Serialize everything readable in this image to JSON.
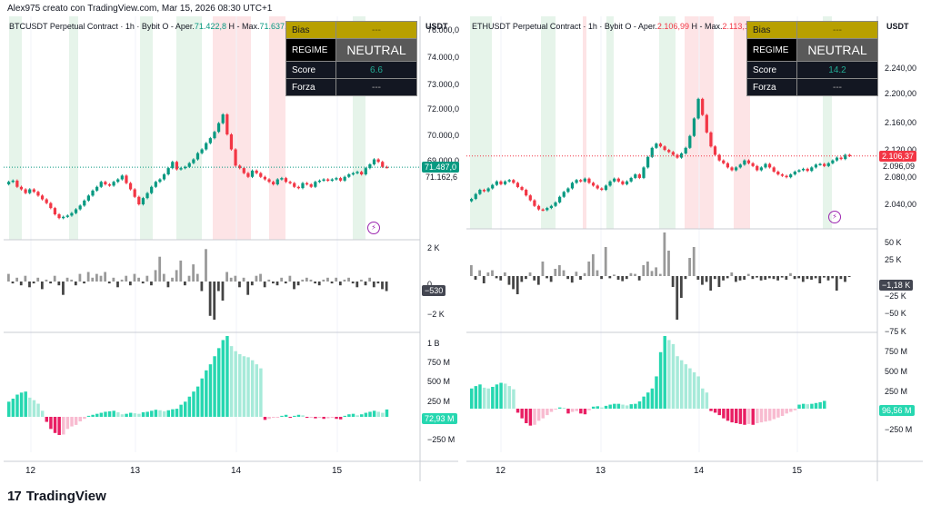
{
  "header": {
    "text": "Alex975 creato con TradingView.com, Mar 15, 2026 08:30 UTC+1"
  },
  "footer": {
    "brand": "TradingView",
    "mark": "17"
  },
  "panels": [
    {
      "id": "btc",
      "title_prefix": "BTCUSDT Perpetual Contract · 1h · Bybit  O - Aper.",
      "open": "71.422,8",
      "high_label": "H - Max.",
      "high": "71.637,3",
      "low_label": "L",
      "unit": "USDT",
      "price_ticks": [
        "76.000,0",
        "74.000,0",
        "73.000,0",
        "72.000,0",
        "70.000,0",
        "69.000,0"
      ],
      "last_price": "71.487,0",
      "secondary_price": "71.162,6",
      "mid_ticks": [
        "2 K",
        "0",
        "−2 K"
      ],
      "mid_last": "−530",
      "low_ticks": [
        "1 B",
        "750 M",
        "500 M",
        "250 M",
        "−250 M"
      ],
      "low_last": "72,93 M",
      "x_labels": [
        "12",
        "13",
        "14",
        "15"
      ],
      "info": {
        "bias_label": "Bias",
        "bias": "---",
        "regime_label": "REGIME",
        "regime": "NEUTRAL",
        "score_label": "Score",
        "score": "6.6",
        "forza_label": "Forza",
        "forza": "---"
      }
    },
    {
      "id": "eth",
      "title_prefix": "ETHUSDT Perpetual Contract · 1h · Bybit  O - Aper.",
      "open": "2.106,99",
      "high_label": "H - Max.",
      "high": "2.113,18",
      "low_label": "L",
      "unit": "USDT",
      "price_ticks": [
        "2.240,00",
        "2.200,00",
        "2.160,00",
        "2.120,00",
        "2.080,00",
        "2.040,00"
      ],
      "last_price": "2.106,37",
      "secondary_price": "2.096,09",
      "mid_ticks": [
        "50 K",
        "25 K",
        "−25 K",
        "−50 K",
        "−75 K"
      ],
      "mid_last": "−1,18 K",
      "low_ticks": [
        "750 M",
        "500 M",
        "250 M",
        "0",
        "−250 M"
      ],
      "low_last": "96,56 M",
      "x_labels": [
        "12",
        "13",
        "14",
        "15"
      ],
      "info": {
        "bias_label": "Bias",
        "bias": "---",
        "regime_label": "REGIME",
        "regime": "NEUTRAL",
        "score_label": "Score",
        "score": "14.2",
        "forza_label": "Forza",
        "forza": "---"
      }
    }
  ],
  "colors": {
    "up": "#089981",
    "down": "#f23645",
    "vol_up": "#999999",
    "vol_down": "#444444",
    "osc_pos": "#26d7b0",
    "osc_pos_light": "#a6ead9",
    "osc_neg": "#e91e63",
    "osc_neg_light": "#f8bbd0",
    "band_green": "#e6f4ea",
    "band_red": "#fde4e6"
  },
  "chart_data": [
    {
      "type": "candlestick",
      "title": "BTCUSDT Perpetual Contract · 1h · Bybit",
      "ylabel": "USDT",
      "ylim": [
        68800,
        76800
      ],
      "x_labels": [
        "12",
        "13",
        "14",
        "15"
      ],
      "close": [
        70900,
        70950,
        70700,
        70600,
        70450,
        70600,
        70500,
        70350,
        70200,
        70050,
        69850,
        69600,
        69450,
        69500,
        69550,
        69650,
        69800,
        69950,
        70150,
        70350,
        70550,
        70700,
        70900,
        70800,
        70750,
        70900,
        71000,
        71150,
        70850,
        70600,
        70300,
        70000,
        70250,
        70450,
        70700,
        70900,
        71000,
        71200,
        71450,
        71700,
        71400,
        71450,
        71500,
        71650,
        71800,
        72050,
        72200,
        72450,
        72650,
        72900,
        73250,
        73600,
        72800,
        72200,
        71550,
        71450,
        71250,
        71100,
        71350,
        71250,
        71100,
        71000,
        70900,
        70800,
        71000,
        71050,
        70900,
        70850,
        70700,
        70650,
        70850,
        70800,
        70700,
        70900,
        70950,
        71000,
        70950,
        71000,
        71050,
        70950,
        71100,
        71200,
        71250,
        71300,
        71200,
        71450,
        71600,
        71800,
        71700,
        71500,
        71487
      ],
      "volume_delta_K": [
        0.4,
        -0.1,
        0.2,
        -0.2,
        0.3,
        -0.3,
        -0.1,
        0.2,
        -0.4,
        0.1,
        -0.1,
        0.3,
        -0.2,
        -0.7,
        0.2,
        0.1,
        -0.2,
        0.4,
        -0.1,
        0.5,
        0.2,
        0.4,
        0.3,
        0.5,
        -0.1,
        0.2,
        -0.3,
        0.1,
        0.3,
        -0.2,
        0.4,
        0.2,
        -0.1,
        0.3,
        -0.2,
        0.6,
        1.3,
        0.4,
        -0.3,
        0.2,
        0.6,
        1.1,
        -0.2,
        0.3,
        0.9,
        0.4,
        -0.5,
        1.7,
        -1.8,
        -2.0,
        -0.5,
        -1.0,
        0.5,
        0.2,
        0.3,
        -0.3,
        0.2,
        -0.7,
        -0.2,
        0.3,
        0.4,
        -0.3,
        0.1,
        -0.1,
        -0.2,
        0.2,
        -0.1,
        0.3,
        -0.4,
        -0.2,
        0.1,
        0.2,
        0.1,
        -0.1,
        -0.2,
        0.1,
        0.2,
        -0.1,
        0.2,
        -0.2,
        0.1,
        0.2,
        -0.1,
        -0.3,
        0.1,
        -0.2,
        0.2,
        -0.3,
        -0.1,
        -0.4,
        -0.5
      ],
      "oscillator_M": [
        150,
        180,
        220,
        240,
        250,
        190,
        165,
        130,
        60,
        -50,
        -120,
        -160,
        -180,
        -175,
        -120,
        -95,
        -80,
        -45,
        -20,
        10,
        20,
        30,
        40,
        50,
        55,
        60,
        45,
        25,
        30,
        40,
        35,
        30,
        45,
        50,
        60,
        70,
        65,
        55,
        65,
        75,
        80,
        120,
        150,
        200,
        250,
        300,
        380,
        460,
        520,
        600,
        680,
        760,
        800,
        700,
        650,
        620,
        600,
        590,
        560,
        520,
        480,
        -30,
        -20,
        -10,
        -5,
        10,
        20,
        -10,
        10,
        20,
        15,
        -10,
        -5,
        -15,
        -10,
        -20,
        -15,
        -10,
        -20,
        -25,
        10,
        25,
        30,
        15,
        25,
        40,
        50,
        60,
        50,
        40,
        72.9
      ]
    },
    {
      "type": "candlestick",
      "title": "ETHUSDT Perpetual Contract · 1h · Bybit",
      "ylabel": "USDT",
      "ylim": [
        2010,
        2280
      ],
      "x_labels": [
        "12",
        "13",
        "14",
        "15"
      ],
      "close": [
        2045,
        2052,
        2058,
        2056,
        2060,
        2065,
        2070,
        2066,
        2070,
        2072,
        2068,
        2062,
        2058,
        2050,
        2043,
        2035,
        2030,
        2029,
        2032,
        2035,
        2040,
        2048,
        2055,
        2060,
        2068,
        2072,
        2070,
        2074,
        2068,
        2064,
        2060,
        2058,
        2064,
        2070,
        2074,
        2070,
        2066,
        2070,
        2075,
        2080,
        2075,
        2090,
        2105,
        2118,
        2124,
        2120,
        2115,
        2112,
        2108,
        2104,
        2110,
        2118,
        2135,
        2160,
        2188,
        2165,
        2140,
        2120,
        2108,
        2100,
        2096,
        2090,
        2086,
        2090,
        2094,
        2100,
        2096,
        2092,
        2086,
        2090,
        2095,
        2090,
        2084,
        2080,
        2078,
        2076,
        2080,
        2084,
        2086,
        2088,
        2085,
        2090,
        2094,
        2095,
        2092,
        2096,
        2100,
        2104,
        2102,
        2108,
        2106.37
      ],
      "volume_delta_K": [
        15,
        -5,
        8,
        -10,
        5,
        8,
        -3,
        -6,
        5,
        -12,
        -18,
        -25,
        -8,
        -4,
        5,
        -6,
        -12,
        20,
        -3,
        -8,
        10,
        15,
        8,
        -4,
        -9,
        6,
        -5,
        4,
        20,
        30,
        8,
        -4,
        40,
        -3,
        2,
        -5,
        -7,
        -4,
        4,
        3,
        -6,
        15,
        20,
        7,
        12,
        3,
        60,
        35,
        -15,
        -60,
        -30,
        -4,
        25,
        40,
        -5,
        -12,
        -8,
        -20,
        -4,
        -15,
        -6,
        -3,
        5,
        -8,
        -6,
        -5,
        3,
        -4,
        -2,
        -6,
        -5,
        -3,
        -4,
        -6,
        -2,
        -5,
        4,
        -4,
        -3,
        -8,
        -4,
        -5,
        -3,
        -10,
        -2,
        -6,
        -3,
        -20,
        -4,
        -8,
        -1.18
      ],
      "oscillator_M": [
        250,
        280,
        300,
        260,
        250,
        270,
        300,
        320,
        310,
        280,
        240,
        -50,
        -120,
        -180,
        -210,
        -200,
        -150,
        -120,
        -80,
        -40,
        -10,
        15,
        10,
        -60,
        -40,
        -30,
        -60,
        -70,
        -20,
        25,
        30,
        15,
        35,
        50,
        60,
        60,
        50,
        40,
        55,
        60,
        90,
        150,
        200,
        250,
        400,
        700,
        900,
        850,
        800,
        650,
        600,
        550,
        500,
        450,
        400,
        250,
        200,
        -30,
        -50,
        -80,
        -120,
        -150,
        -170,
        -180,
        -190,
        -200,
        -190,
        -200,
        -180,
        -170,
        -160,
        -150,
        -130,
        -110,
        -90,
        -60,
        -40,
        -20,
        50,
        60,
        55,
        60,
        70,
        80,
        96.56
      ]
    }
  ]
}
